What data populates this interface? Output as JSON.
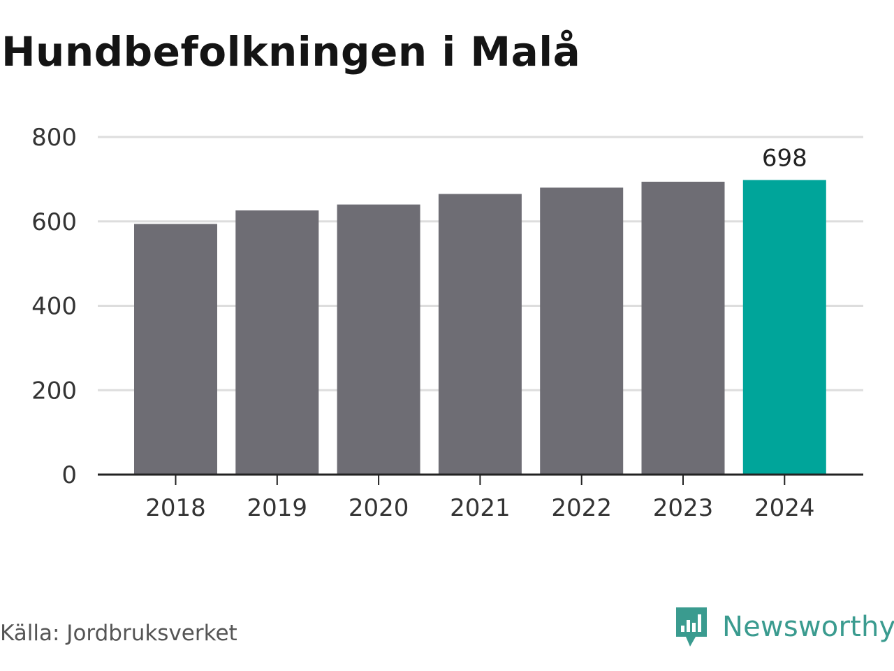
{
  "title": "Hundbefolkningen i Malå",
  "source": "Källa: Jordbruksverket",
  "brand": {
    "name": "Newsworthy",
    "icon": "newsworthy-logo-icon",
    "color": "#3a9b8f"
  },
  "colors": {
    "bar": "#6e6d74",
    "highlight": "#00a59a",
    "grid": "#dddddd",
    "axis": "#222222"
  },
  "chart_data": {
    "type": "bar",
    "categories": [
      "2018",
      "2019",
      "2020",
      "2021",
      "2022",
      "2023",
      "2024"
    ],
    "values": [
      594,
      626,
      640,
      665,
      680,
      694,
      698
    ],
    "highlight_index": 6,
    "data_labels": {
      "6": "698"
    },
    "yticks": [
      0,
      200,
      400,
      600,
      800
    ],
    "ylim": [
      0,
      800
    ],
    "grid": true
  }
}
